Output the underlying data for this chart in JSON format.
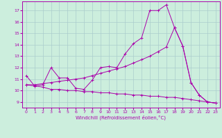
{
  "xlabel": "Windchill (Refroidissement éolien,°C)",
  "xlim": [
    -0.5,
    23.5
  ],
  "ylim": [
    8.5,
    17.8
  ],
  "yticks": [
    9,
    10,
    11,
    12,
    13,
    14,
    15,
    16,
    17
  ],
  "xticks": [
    0,
    1,
    2,
    3,
    4,
    5,
    6,
    7,
    8,
    9,
    10,
    11,
    12,
    13,
    14,
    15,
    16,
    17,
    18,
    19,
    20,
    21,
    22,
    23
  ],
  "bg_color": "#cceedd",
  "grid_color": "#aacccc",
  "line_color": "#aa00aa",
  "line1_x": [
    0,
    1,
    2,
    3,
    4,
    5,
    6,
    7,
    8,
    9,
    10,
    11,
    12,
    13,
    14,
    15,
    16,
    17,
    18,
    19,
    20,
    21,
    22,
    23
  ],
  "line1_y": [
    11.3,
    10.4,
    10.5,
    12.0,
    11.1,
    11.1,
    10.2,
    10.1,
    10.9,
    12.0,
    12.1,
    12.0,
    13.2,
    14.1,
    14.6,
    17.0,
    17.0,
    17.5,
    15.5,
    13.9,
    10.7,
    9.6,
    9.0,
    8.9
  ],
  "line2_x": [
    0,
    1,
    2,
    3,
    4,
    5,
    6,
    7,
    8,
    9,
    10,
    11,
    12,
    13,
    14,
    15,
    16,
    17,
    18,
    19,
    20,
    21,
    22,
    23
  ],
  "line2_y": [
    10.5,
    10.5,
    10.6,
    10.7,
    10.8,
    10.9,
    11.0,
    11.1,
    11.3,
    11.5,
    11.7,
    11.9,
    12.1,
    12.4,
    12.7,
    13.0,
    13.4,
    13.8,
    15.5,
    13.9,
    10.7,
    9.6,
    9.0,
    8.9
  ],
  "line3_x": [
    0,
    1,
    2,
    3,
    4,
    5,
    6,
    7,
    8,
    9,
    10,
    11,
    12,
    13,
    14,
    15,
    16,
    17,
    18,
    19,
    20,
    21,
    22,
    23
  ],
  "line3_y": [
    10.5,
    10.4,
    10.3,
    10.1,
    10.1,
    10.0,
    10.0,
    9.9,
    9.9,
    9.8,
    9.8,
    9.7,
    9.7,
    9.6,
    9.6,
    9.5,
    9.5,
    9.4,
    9.4,
    9.3,
    9.2,
    9.1,
    9.0,
    8.9
  ]
}
